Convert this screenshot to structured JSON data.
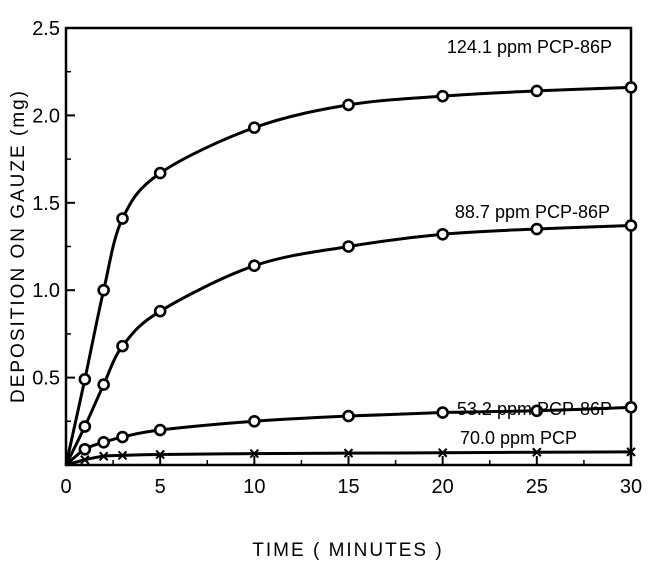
{
  "chart_data": {
    "type": "line",
    "title": "",
    "xlabel": "TIME ( MINUTES )",
    "ylabel": "DEPOSITION ON GAUZE (mg)",
    "xlim": [
      0,
      30
    ],
    "ylim": [
      0,
      2.5
    ],
    "x_ticks": [
      "0",
      "5",
      "10",
      "15",
      "20",
      "25",
      "30"
    ],
    "y_ticks": [
      "0.5",
      "1.0",
      "1.5",
      "2.0",
      "2.5"
    ],
    "grid": false,
    "legend": "none (series labeled inline)",
    "x": [
      0,
      1,
      2,
      3,
      5,
      10,
      15,
      20,
      25,
      30
    ],
    "series": [
      {
        "name": "124.1 ppm PCP-86P",
        "marker": "circle",
        "values": [
          0,
          0.49,
          1.0,
          1.41,
          1.67,
          1.93,
          2.06,
          2.11,
          2.14,
          2.16
        ]
      },
      {
        "name": "88.7 ppm PCP-86P",
        "marker": "circle",
        "values": [
          0,
          0.22,
          0.46,
          0.68,
          0.88,
          1.14,
          1.25,
          1.32,
          1.35,
          1.37
        ]
      },
      {
        "name": "53.2 ppm PCP-86P",
        "marker": "circle",
        "values": [
          0,
          0.09,
          0.13,
          0.16,
          0.2,
          0.25,
          0.28,
          0.3,
          0.31,
          0.33
        ]
      },
      {
        "name": "70.0 ppm PCP",
        "marker": "x",
        "values": [
          0,
          0.03,
          0.05,
          0.055,
          0.06,
          0.065,
          0.068,
          0.07,
          0.073,
          0.075
        ]
      }
    ]
  }
}
